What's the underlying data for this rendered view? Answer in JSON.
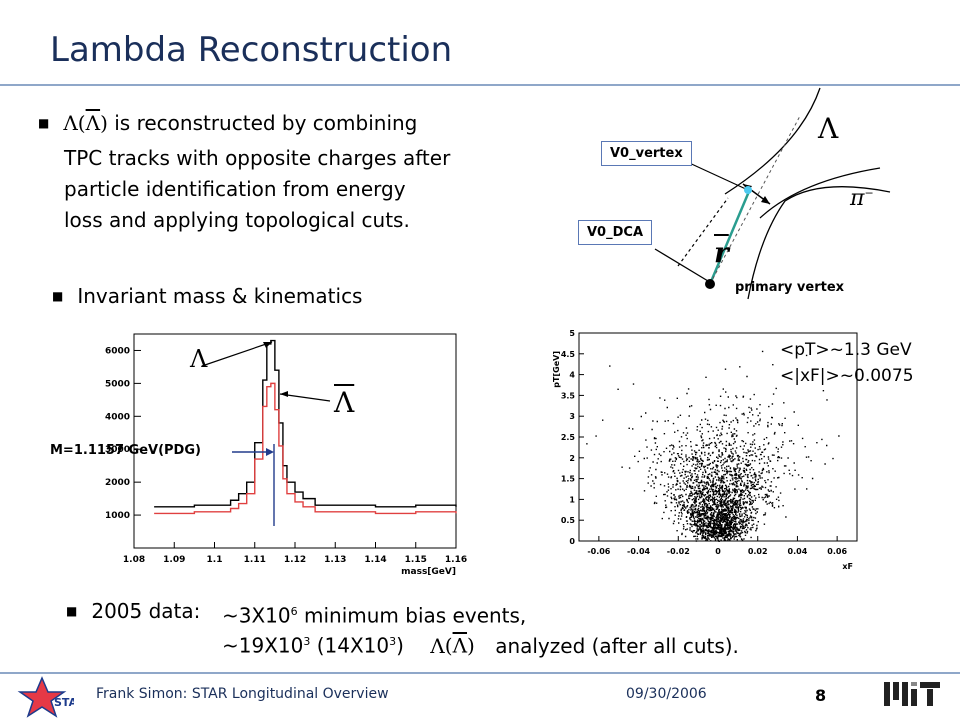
{
  "title": "Lambda Reconstruction",
  "bullet1": {
    "line1_suffix": "is reconstructed by combining",
    "line2": "TPC tracks with opposite charges after",
    "line3": "particle identification from energy",
    "line4": "loss and applying topological cuts."
  },
  "lambda_symbol": "Λ",
  "pion_symbol": "π",
  "pion_sup": "−",
  "diagram": {
    "v0_vertex_label": "V0_vertex",
    "v0_dca_label": "V0_DCA",
    "primary_vertex_label": "primary vertex",
    "r_symbol": "r"
  },
  "bullet2": "Invariant mass & kinematics",
  "mass_plot": {
    "pdg_label": "M=1.1157 GeV(PDG)",
    "xlabel": "mass[GeV]",
    "x_ticks": [
      "1.08",
      "1.09",
      "1.1",
      "1.11",
      "1.12",
      "1.13",
      "1.14",
      "1.15",
      "1.16"
    ],
    "y_ticks": [
      "1000",
      "2000",
      "3000",
      "4000",
      "5000",
      "6000"
    ]
  },
  "scatter_plot": {
    "ylabel": "pT[GeV]",
    "xlabel": "xF",
    "x_ticks": [
      "-0.06",
      "-0.04",
      "-0.02",
      "0",
      "0.02",
      "0.04",
      "0.06"
    ],
    "y_ticks": [
      "0",
      "0.5",
      "1",
      "1.5",
      "2",
      "2.5",
      "3",
      "3.5",
      "4",
      "4.5",
      "5"
    ],
    "annotation1": "<pT>~1.3 GeV",
    "annotation2": "<|xF|>~0.0075"
  },
  "bullet3": {
    "label": "2005 data:",
    "line1_pre": "~3X10",
    "line1_sup": "6",
    "line1_post": " minimum bias events,",
    "line2_pre": "~19X10",
    "line2_sup1": "3",
    "line2_mid": " (14X10",
    "line2_sup2": "3",
    "line2_close": ")",
    "line2_post": "analyzed (after all cuts)."
  },
  "footer": {
    "author": "Frank Simon: STAR Longitudinal Overview",
    "date": "09/30/2006",
    "page": "8",
    "star_logo": "STAR"
  },
  "chart_data": [
    {
      "type": "line",
      "title": "",
      "xlabel": "mass[GeV]",
      "ylabel": "",
      "xlim": [
        1.08,
        1.16
      ],
      "ylim": [
        0,
        6500
      ],
      "series": [
        {
          "name": "Λ",
          "x": [
            1.085,
            1.09,
            1.095,
            1.1,
            1.104,
            1.106,
            1.108,
            1.11,
            1.112,
            1.113,
            1.114,
            1.115,
            1.116,
            1.117,
            1.118,
            1.12,
            1.122,
            1.125,
            1.13,
            1.135,
            1.14,
            1.15,
            1.16
          ],
          "y": [
            1250,
            1250,
            1300,
            1300,
            1450,
            1650,
            2000,
            3200,
            5100,
            6200,
            6300,
            5400,
            3800,
            2500,
            2000,
            1700,
            1500,
            1300,
            1300,
            1300,
            1250,
            1300,
            1250
          ]
        },
        {
          "name": "Λ̄",
          "x": [
            1.085,
            1.09,
            1.095,
            1.1,
            1.104,
            1.106,
            1.108,
            1.11,
            1.112,
            1.113,
            1.114,
            1.115,
            1.116,
            1.117,
            1.118,
            1.12,
            1.122,
            1.125,
            1.13,
            1.135,
            1.14,
            1.15,
            1.16
          ],
          "y": [
            1050,
            1050,
            1100,
            1100,
            1200,
            1350,
            1650,
            2700,
            4300,
            4900,
            5000,
            4200,
            3100,
            2100,
            1650,
            1400,
            1250,
            1100,
            1100,
            1100,
            1050,
            1100,
            1050
          ]
        }
      ]
    },
    {
      "type": "scatter",
      "title": "",
      "xlabel": "xF",
      "ylabel": "pT[GeV]",
      "xlim": [
        -0.07,
        0.07
      ],
      "ylim": [
        0,
        5
      ]
    }
  ]
}
